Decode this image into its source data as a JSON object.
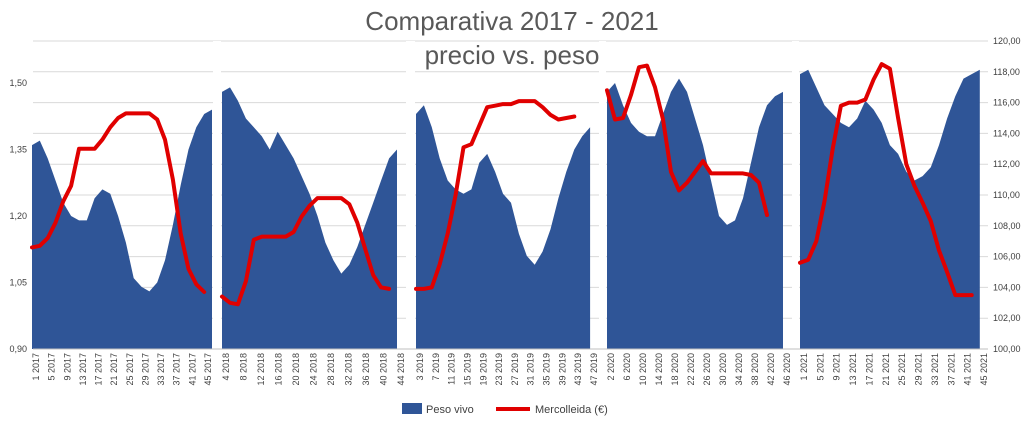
{
  "chart_data": {
    "type": "area",
    "title": "Comparativa 2017 - 2021",
    "subtitle": "precio vs. peso",
    "y_left": {
      "min": 0.9,
      "max": 1.5,
      "ticks": [
        "0,90",
        "1,05",
        "1,20",
        "1,35",
        "1,50"
      ]
    },
    "y_right": {
      "min": 100,
      "max": 120,
      "ticks": [
        "100,00",
        "102,00",
        "104,00",
        "106,00",
        "108,00",
        "110,00",
        "112,00",
        "114,00",
        "116,00",
        "118,00",
        "120,00"
      ]
    },
    "legend": {
      "position": "bottom",
      "items": [
        "Peso vivo",
        "Mercolleida (€)"
      ]
    },
    "colors": {
      "area": "#2F5597",
      "line": "#E00000",
      "grid": "#D9D9D9"
    },
    "years": [
      {
        "year": "2017",
        "x_labels": [
          "1 2017",
          "5 2017",
          "9 2017",
          "13 2017",
          "17 2017",
          "21 2017",
          "25 2017",
          "29 2017",
          "33 2017",
          "37 2017",
          "41 2017",
          "45 2017"
        ],
        "peso_vivo": [
          [
            1,
            1.36
          ],
          [
            3,
            1.37
          ],
          [
            5,
            1.33
          ],
          [
            7,
            1.28
          ],
          [
            9,
            1.23
          ],
          [
            11,
            1.2
          ],
          [
            13,
            1.19
          ],
          [
            15,
            1.19
          ],
          [
            17,
            1.24
          ],
          [
            19,
            1.26
          ],
          [
            21,
            1.25
          ],
          [
            23,
            1.2
          ],
          [
            25,
            1.14
          ],
          [
            27,
            1.06
          ],
          [
            29,
            1.04
          ],
          [
            31,
            1.03
          ],
          [
            33,
            1.05
          ],
          [
            35,
            1.1
          ],
          [
            37,
            1.18
          ],
          [
            39,
            1.27
          ],
          [
            41,
            1.35
          ],
          [
            43,
            1.4
          ],
          [
            45,
            1.43
          ],
          [
            47,
            1.44
          ]
        ],
        "mercolleida": [
          [
            1,
            106.6
          ],
          [
            3,
            106.7
          ],
          [
            5,
            107.2
          ],
          [
            7,
            108.2
          ],
          [
            9,
            109.6
          ],
          [
            11,
            110.6
          ],
          [
            13,
            113.0
          ],
          [
            15,
            113.0
          ],
          [
            17,
            113.0
          ],
          [
            19,
            113.6
          ],
          [
            21,
            114.4
          ],
          [
            23,
            115.0
          ],
          [
            25,
            115.3
          ],
          [
            27,
            115.3
          ],
          [
            29,
            115.3
          ],
          [
            31,
            115.3
          ],
          [
            33,
            114.9
          ],
          [
            35,
            113.6
          ],
          [
            37,
            111.0
          ],
          [
            39,
            107.5
          ],
          [
            41,
            105.2
          ],
          [
            43,
            104.2
          ],
          [
            45,
            103.7
          ]
        ]
      },
      {
        "year": "2018",
        "x_labels": [
          "4 2018",
          "8 2018",
          "12 2018",
          "16 2018",
          "20 2018",
          "24 2018",
          "28 2018",
          "32 2018",
          "36 2018",
          "40 2018",
          "44 2018"
        ],
        "peso_vivo": [
          [
            1,
            1.48
          ],
          [
            3,
            1.49
          ],
          [
            5,
            1.46
          ],
          [
            7,
            1.42
          ],
          [
            9,
            1.4
          ],
          [
            11,
            1.38
          ],
          [
            13,
            1.35
          ],
          [
            15,
            1.39
          ],
          [
            17,
            1.36
          ],
          [
            19,
            1.33
          ],
          [
            21,
            1.29
          ],
          [
            23,
            1.25
          ],
          [
            25,
            1.2
          ],
          [
            27,
            1.14
          ],
          [
            29,
            1.1
          ],
          [
            31,
            1.07
          ],
          [
            33,
            1.09
          ],
          [
            35,
            1.13
          ],
          [
            37,
            1.18
          ],
          [
            39,
            1.23
          ],
          [
            41,
            1.28
          ],
          [
            43,
            1.33
          ],
          [
            45,
            1.35
          ]
        ],
        "mercolleida": [
          [
            1,
            103.4
          ],
          [
            3,
            103.0
          ],
          [
            5,
            102.9
          ],
          [
            7,
            104.4
          ],
          [
            9,
            107.1
          ],
          [
            11,
            107.3
          ],
          [
            13,
            107.3
          ],
          [
            15,
            107.3
          ],
          [
            17,
            107.3
          ],
          [
            19,
            107.6
          ],
          [
            21,
            108.6
          ],
          [
            23,
            109.3
          ],
          [
            25,
            109.8
          ],
          [
            27,
            109.8
          ],
          [
            29,
            109.8
          ],
          [
            31,
            109.8
          ],
          [
            33,
            109.4
          ],
          [
            35,
            108.2
          ],
          [
            37,
            106.5
          ],
          [
            39,
            104.8
          ],
          [
            41,
            104.0
          ],
          [
            43,
            103.9
          ]
        ]
      },
      {
        "year": "2019",
        "x_labels": [
          "3 2019",
          "7 2019",
          "11 2019",
          "15 2019",
          "19 2019",
          "23 2019",
          "27 2019",
          "31 2019",
          "35 2019",
          "39 2019",
          "43 2019",
          "47 2019"
        ],
        "peso_vivo": [
          [
            1,
            1.43
          ],
          [
            3,
            1.45
          ],
          [
            5,
            1.4
          ],
          [
            7,
            1.33
          ],
          [
            9,
            1.28
          ],
          [
            11,
            1.26
          ],
          [
            13,
            1.25
          ],
          [
            15,
            1.26
          ],
          [
            17,
            1.32
          ],
          [
            19,
            1.34
          ],
          [
            21,
            1.3
          ],
          [
            23,
            1.25
          ],
          [
            25,
            1.23
          ],
          [
            27,
            1.16
          ],
          [
            29,
            1.11
          ],
          [
            31,
            1.09
          ],
          [
            33,
            1.12
          ],
          [
            35,
            1.17
          ],
          [
            37,
            1.24
          ],
          [
            39,
            1.3
          ],
          [
            41,
            1.35
          ],
          [
            43,
            1.38
          ],
          [
            45,
            1.4
          ]
        ],
        "mercolleida": [
          [
            1,
            103.9
          ],
          [
            3,
            103.9
          ],
          [
            5,
            104.0
          ],
          [
            7,
            105.5
          ],
          [
            9,
            107.5
          ],
          [
            11,
            110.0
          ],
          [
            13,
            113.1
          ],
          [
            15,
            113.3
          ],
          [
            17,
            114.5
          ],
          [
            19,
            115.7
          ],
          [
            21,
            115.8
          ],
          [
            23,
            115.9
          ],
          [
            25,
            115.9
          ],
          [
            27,
            116.1
          ],
          [
            29,
            116.1
          ],
          [
            31,
            116.1
          ],
          [
            33,
            115.7
          ],
          [
            35,
            115.2
          ],
          [
            37,
            114.9
          ],
          [
            39,
            115.0
          ],
          [
            41,
            115.1
          ]
        ]
      },
      {
        "year": "2020",
        "x_labels": [
          "2 2020",
          "6 2020",
          "10 2020",
          "14 2020",
          "18 2020",
          "22 2020",
          "26 2020",
          "30 2020",
          "34 2020",
          "38 2020",
          "42 2020",
          "46 2020"
        ],
        "peso_vivo": [
          [
            1,
            1.48
          ],
          [
            3,
            1.5
          ],
          [
            5,
            1.45
          ],
          [
            7,
            1.41
          ],
          [
            9,
            1.39
          ],
          [
            11,
            1.38
          ],
          [
            13,
            1.38
          ],
          [
            15,
            1.43
          ],
          [
            17,
            1.48
          ],
          [
            19,
            1.51
          ],
          [
            21,
            1.48
          ],
          [
            23,
            1.42
          ],
          [
            25,
            1.36
          ],
          [
            27,
            1.28
          ],
          [
            29,
            1.2
          ],
          [
            31,
            1.18
          ],
          [
            33,
            1.19
          ],
          [
            35,
            1.24
          ],
          [
            37,
            1.32
          ],
          [
            39,
            1.4
          ],
          [
            41,
            1.45
          ],
          [
            43,
            1.47
          ],
          [
            45,
            1.48
          ]
        ],
        "mercolleida": [
          [
            1,
            116.8
          ],
          [
            3,
            114.9
          ],
          [
            5,
            115.0
          ],
          [
            7,
            116.5
          ],
          [
            9,
            118.3
          ],
          [
            11,
            118.4
          ],
          [
            13,
            117.0
          ],
          [
            15,
            114.9
          ],
          [
            17,
            111.5
          ],
          [
            19,
            110.3
          ],
          [
            21,
            110.8
          ],
          [
            23,
            111.5
          ],
          [
            25,
            112.2
          ],
          [
            27,
            111.4
          ],
          [
            29,
            111.4
          ],
          [
            31,
            111.4
          ],
          [
            33,
            111.4
          ],
          [
            35,
            111.4
          ],
          [
            37,
            111.3
          ],
          [
            39,
            110.8
          ],
          [
            41,
            108.7
          ]
        ]
      },
      {
        "year": "2021",
        "x_labels": [
          "1 2021",
          "5 2021",
          "9 2021",
          "13 2021",
          "17 2021",
          "21 2021",
          "25 2021",
          "29 2021",
          "33 2021",
          "37 2021",
          "41 2021",
          "45 2021"
        ],
        "peso_vivo": [
          [
            1,
            1.52
          ],
          [
            3,
            1.53
          ],
          [
            5,
            1.49
          ],
          [
            7,
            1.45
          ],
          [
            9,
            1.43
          ],
          [
            11,
            1.41
          ],
          [
            13,
            1.4
          ],
          [
            15,
            1.42
          ],
          [
            17,
            1.46
          ],
          [
            19,
            1.44
          ],
          [
            21,
            1.41
          ],
          [
            23,
            1.36
          ],
          [
            25,
            1.34
          ],
          [
            27,
            1.3
          ],
          [
            29,
            1.28
          ],
          [
            31,
            1.29
          ],
          [
            33,
            1.31
          ],
          [
            35,
            1.36
          ],
          [
            37,
            1.42
          ],
          [
            39,
            1.47
          ],
          [
            41,
            1.51
          ],
          [
            43,
            1.52
          ],
          [
            45,
            1.53
          ]
        ],
        "mercolleida": [
          [
            1,
            105.6
          ],
          [
            3,
            105.8
          ],
          [
            5,
            107.0
          ],
          [
            7,
            109.6
          ],
          [
            9,
            113.0
          ],
          [
            11,
            115.8
          ],
          [
            13,
            116.0
          ],
          [
            15,
            116.0
          ],
          [
            17,
            116.2
          ],
          [
            19,
            117.5
          ],
          [
            21,
            118.5
          ],
          [
            23,
            118.2
          ],
          [
            25,
            115.0
          ],
          [
            27,
            112.0
          ],
          [
            29,
            110.6
          ],
          [
            31,
            109.5
          ],
          [
            33,
            108.3
          ],
          [
            35,
            106.4
          ],
          [
            37,
            105.0
          ],
          [
            39,
            103.5
          ],
          [
            41,
            103.5
          ],
          [
            43,
            103.5
          ]
        ]
      }
    ]
  }
}
